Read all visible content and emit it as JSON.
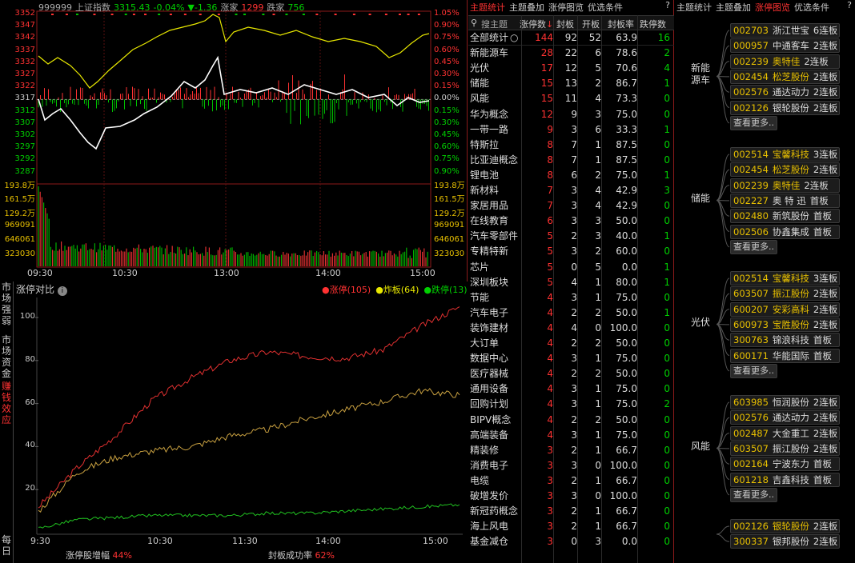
{
  "index": {
    "code": "999999",
    "name": "上证指数",
    "price": "3315.43",
    "pct": "-0.04%",
    "chg": "▼-1.36",
    "up_label": "涨家",
    "up": "1299",
    "down_label": "跌家",
    "down": "756",
    "ylabels": [
      "3352",
      "3347",
      "3342",
      "3337",
      "3332",
      "3327",
      "3322",
      "3317",
      "3312",
      "3307",
      "3302",
      "3297",
      "3292",
      "3287"
    ],
    "pct_labels": [
      "1.05%",
      "0.90%",
      "0.75%",
      "0.60%",
      "0.45%",
      "0.30%",
      "0.15%",
      "0.00%",
      "0.15%",
      "0.30%",
      "0.45%",
      "0.60%",
      "0.75%",
      "0.90%"
    ],
    "vol_labels": [
      "193.8万",
      "161.5万",
      "129.2万",
      "969091",
      "646061",
      "323030"
    ],
    "times": [
      "09:30",
      "10:30",
      "13:00",
      "14:00",
      "15:00"
    ]
  },
  "ztdb": {
    "side": [
      "市场强弱",
      "市场资金",
      "赚钱效应",
      "每日"
    ],
    "title": "涨停对比",
    "legend": [
      {
        "label": "涨停(105)",
        "color": "#ff3232"
      },
      {
        "label": "炸板(64)",
        "color": "#e8e800"
      },
      {
        "label": "跌停(13)",
        "color": "#00d000"
      }
    ],
    "yticks": [
      "100",
      "80",
      "60",
      "40",
      "20"
    ],
    "xticks": [
      "9:30",
      "10:30",
      "11:30",
      "14:00",
      "15:00"
    ],
    "footer": {
      "l_label": "涨停股增幅",
      "l_val": "44%",
      "r_label": "封板成功率",
      "r_val": "62%"
    },
    "chart_data": {
      "type": "line",
      "x_labels": [
        "9:30",
        "10:30",
        "11:30",
        "14:00",
        "15:00"
      ],
      "ylim": [
        0,
        110
      ],
      "series": [
        {
          "name": "涨停",
          "values": [
            12,
            30,
            45,
            62,
            72,
            80,
            84,
            82,
            81,
            85,
            96,
            105
          ]
        },
        {
          "name": "炸板",
          "values": [
            10,
            28,
            35,
            38,
            40,
            45,
            48,
            53,
            57,
            61,
            66,
            64
          ]
        },
        {
          "name": "跌停",
          "values": [
            2,
            6,
            7,
            8,
            8,
            8,
            9,
            9,
            10,
            11,
            12,
            13
          ]
        }
      ]
    }
  },
  "theme": {
    "tabs": [
      "主题统计",
      "主题叠加",
      "涨停图览",
      "优选条件"
    ],
    "help": "?",
    "search": "搜主题",
    "cols": [
      "涨停数",
      "封板",
      "开板",
      "封板率",
      "跌停数"
    ],
    "rows": [
      [
        "全部统计",
        144,
        92,
        52,
        "63.9",
        16
      ],
      [
        "新能源车",
        28,
        22,
        6,
        "78.6",
        2
      ],
      [
        "光伏",
        17,
        12,
        5,
        "70.6",
        4
      ],
      [
        "储能",
        15,
        13,
        2,
        "86.7",
        1
      ],
      [
        "风能",
        15,
        11,
        4,
        "73.3",
        0
      ],
      [
        "华为概念",
        12,
        9,
        3,
        "75.0",
        0
      ],
      [
        "一带一路",
        9,
        3,
        6,
        "33.3",
        1
      ],
      [
        "特斯拉",
        8,
        7,
        1,
        "87.5",
        0
      ],
      [
        "比亚迪概念",
        8,
        7,
        1,
        "87.5",
        0
      ],
      [
        "锂电池",
        8,
        6,
        2,
        "75.0",
        1
      ],
      [
        "新材料",
        7,
        3,
        4,
        "42.9",
        3
      ],
      [
        "家居用品",
        7,
        3,
        4,
        "42.9",
        0
      ],
      [
        "在线教育",
        6,
        3,
        3,
        "50.0",
        0
      ],
      [
        "汽车零部件",
        5,
        2,
        3,
        "40.0",
        1
      ],
      [
        "专精特新",
        5,
        3,
        2,
        "60.0",
        0
      ],
      [
        "芯片",
        5,
        0,
        5,
        "0.0",
        1
      ],
      [
        "深圳板块",
        5,
        4,
        1,
        "80.0",
        1
      ],
      [
        "节能",
        4,
        3,
        1,
        "75.0",
        0
      ],
      [
        "汽车电子",
        4,
        2,
        2,
        "50.0",
        1
      ],
      [
        "装饰建材",
        4,
        4,
        0,
        "100.0",
        0
      ],
      [
        "大订单",
        4,
        2,
        2,
        "50.0",
        0
      ],
      [
        "数据中心",
        4,
        3,
        1,
        "75.0",
        0
      ],
      [
        "医疗器械",
        4,
        2,
        2,
        "50.0",
        0
      ],
      [
        "通用设备",
        4,
        3,
        1,
        "75.0",
        0
      ],
      [
        "回购计划",
        4,
        3,
        1,
        "75.0",
        2
      ],
      [
        "BIPV概念",
        4,
        2,
        2,
        "50.0",
        0
      ],
      [
        "高端装备",
        4,
        3,
        1,
        "75.0",
        0
      ],
      [
        "精装修",
        3,
        2,
        1,
        "66.7",
        0
      ],
      [
        "消费电子",
        3,
        3,
        0,
        "100.0",
        0
      ],
      [
        "电缆",
        3,
        2,
        1,
        "66.7",
        0
      ],
      [
        "破增发价",
        3,
        3,
        0,
        "100.0",
        0
      ],
      [
        "新冠药概念",
        3,
        2,
        1,
        "66.7",
        0
      ],
      [
        "海上风电",
        3,
        2,
        1,
        "66.7",
        0
      ],
      [
        "基金减仓",
        3,
        0,
        3,
        "0.0",
        0
      ]
    ]
  },
  "ztgl": {
    "tabs": [
      "主题统计",
      "主题叠加",
      "涨停图览",
      "优选条件"
    ],
    "help": "?",
    "more": "查看更多..",
    "groups": [
      {
        "name": "新能源车",
        "stocks": [
          [
            "002703",
            "浙江世宝",
            "6连板"
          ],
          [
            "000957",
            "中通客车",
            "2连板"
          ],
          [
            "002239",
            "奥特佳",
            "2连板"
          ],
          [
            "002454",
            "松芝股份",
            "2连板"
          ],
          [
            "002576",
            "通达动力",
            "2连板"
          ],
          [
            "002126",
            "银轮股份",
            "2连板"
          ]
        ]
      },
      {
        "name": "储能",
        "stocks": [
          [
            "002514",
            "宝馨科技",
            "3连板"
          ],
          [
            "002454",
            "松芝股份",
            "2连板"
          ],
          [
            "002239",
            "奥特佳",
            "2连板"
          ],
          [
            "002227",
            "奥 特 迅",
            "首板"
          ],
          [
            "002480",
            "新筑股份",
            "首板"
          ],
          [
            "002506",
            "协鑫集成",
            "首板"
          ]
        ]
      },
      {
        "name": "光伏",
        "stocks": [
          [
            "002514",
            "宝馨科技",
            "3连板"
          ],
          [
            "603507",
            "振江股份",
            "2连板"
          ],
          [
            "600207",
            "安彩高科",
            "2连板"
          ],
          [
            "600973",
            "宝胜股份",
            "2连板"
          ],
          [
            "300763",
            "锦浪科技",
            "首板"
          ],
          [
            "600171",
            "华能国际",
            "首板"
          ]
        ]
      },
      {
        "name": "风能",
        "stocks": [
          [
            "603985",
            "恒润股份",
            "2连板"
          ],
          [
            "002576",
            "通达动力",
            "2连板"
          ],
          [
            "002487",
            "大金重工",
            "2连板"
          ],
          [
            "603507",
            "振江股份",
            "2连板"
          ],
          [
            "002164",
            "宁波东力",
            "首板"
          ],
          [
            "601218",
            "吉鑫科技",
            "首板"
          ]
        ]
      },
      {
        "name": "",
        "stocks": [
          [
            "002126",
            "银轮股份",
            "2连板"
          ],
          [
            "300337",
            "银邦股份",
            "2连板"
          ]
        ]
      }
    ]
  }
}
